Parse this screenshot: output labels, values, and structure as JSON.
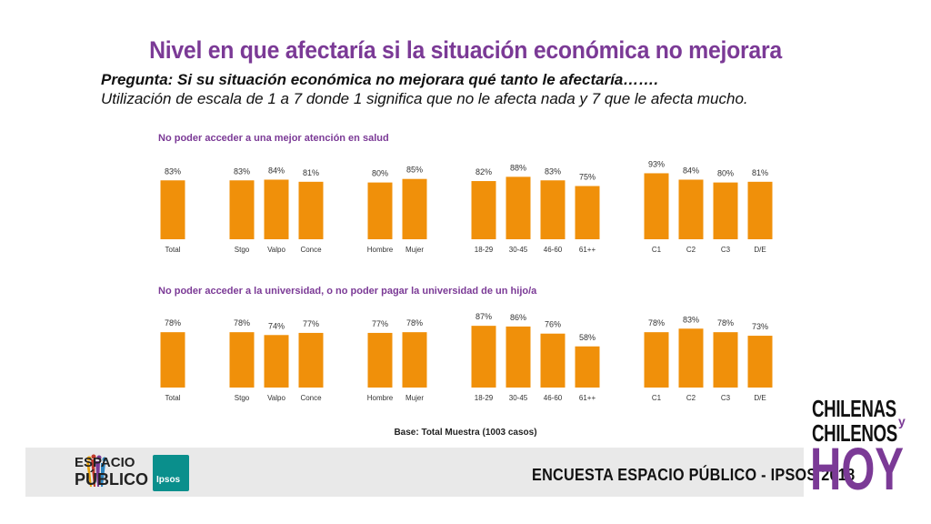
{
  "title": "Nivel en que afectaría si la situación económica no mejorara",
  "question": "Pregunta: Si su situación económica no mejorara qué tanto le afectaría…….",
  "scale_note": "Utilización de escala de 1 a 7 donde 1 significa que no le afecta nada y 7 que le afecta mucho.",
  "base_note": "Base: Total Muestra (1003 casos)",
  "footer": {
    "org_line1": "ESPACIO",
    "org_line2": "PÚBLICO",
    "partner": "Ipsos",
    "survey": "ENCUESTA ESPACIO PÚBLICO - IPSOS 2018",
    "brand_line1": "CHILENAS",
    "brand_y": "y",
    "brand_line2": "CHILENOS",
    "brand_line3": "HOY"
  },
  "colors": {
    "bar": "#F0900A",
    "accent": "#7B3A96"
  },
  "chart_data": [
    {
      "type": "bar",
      "title": "No poder acceder a una mejor atención en salud",
      "categories": [
        "Total",
        "Stgo",
        "Valpo",
        "Conce",
        "Hombre",
        "Mujer",
        "18-29",
        "30-45",
        "46-60",
        "61++",
        "C1",
        "C2",
        "C3",
        "D/E"
      ],
      "groups": [
        [
          "Total"
        ],
        [
          "Stgo",
          "Valpo",
          "Conce"
        ],
        [
          "Hombre",
          "Mujer"
        ],
        [
          "18-29",
          "30-45",
          "46-60",
          "61++"
        ],
        [
          "C1",
          "C2",
          "C3",
          "D/E"
        ]
      ],
      "values": [
        83,
        83,
        84,
        81,
        80,
        85,
        82,
        88,
        83,
        75,
        93,
        84,
        80,
        81
      ],
      "labels": [
        "83%",
        "83%",
        "84%",
        "81%",
        "80%",
        "85%",
        "82%",
        "88%",
        "83%",
        "75%",
        "93%",
        "84%",
        "80%",
        "81%"
      ],
      "unit": "%",
      "ylim": [
        0,
        100
      ]
    },
    {
      "type": "bar",
      "title": "No poder acceder a la universidad, o no poder pagar la universidad de un hijo/a",
      "categories": [
        "Total",
        "Stgo",
        "Valpo",
        "Conce",
        "Hombre",
        "Mujer",
        "18-29",
        "30-45",
        "46-60",
        "61++",
        "C1",
        "C2",
        "C3",
        "D/E"
      ],
      "groups": [
        [
          "Total"
        ],
        [
          "Stgo",
          "Valpo",
          "Conce"
        ],
        [
          "Hombre",
          "Mujer"
        ],
        [
          "18-29",
          "30-45",
          "46-60",
          "61++"
        ],
        [
          "C1",
          "C2",
          "C3",
          "D/E"
        ]
      ],
      "values": [
        78,
        78,
        74,
        77,
        77,
        78,
        87,
        86,
        76,
        58,
        78,
        83,
        78,
        73
      ],
      "labels": [
        "78%",
        "78%",
        "74%",
        "77%",
        "77%",
        "78%",
        "87%",
        "86%",
        "76%",
        "58%",
        "78%",
        "83%",
        "78%",
        "73%"
      ],
      "unit": "%",
      "ylim": [
        0,
        100
      ]
    }
  ]
}
